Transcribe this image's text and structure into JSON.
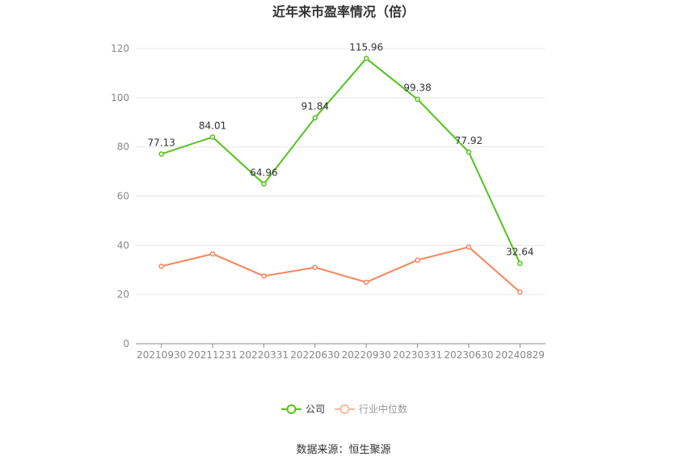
{
  "chart_data": {
    "type": "line",
    "title": "近年来市盈率情况（倍）",
    "categories": [
      "20210930",
      "20211231",
      "20220331",
      "20220630",
      "20220930",
      "20230331",
      "20230630",
      "20240829"
    ],
    "series": [
      {
        "name": "公司",
        "color": "#52c41a",
        "values": [
          77.13,
          84.01,
          64.96,
          91.84,
          115.96,
          99.38,
          77.92,
          32.64
        ],
        "labels": [
          "77.13",
          "84.01",
          "64.96",
          "91.84",
          "115.96",
          "99.38",
          "77.92",
          "32.64"
        ]
      },
      {
        "name": "行业中位数",
        "color": "#f5855b",
        "values": [
          31.5,
          36.5,
          27.5,
          31.0,
          25.0,
          34.0,
          39.3,
          21.0
        ]
      }
    ],
    "ylim": [
      0,
      120
    ],
    "yticks": [
      "0",
      "20",
      "40",
      "60",
      "80",
      "100",
      "120"
    ],
    "grid": true,
    "legend": "bottom"
  },
  "source": "数据来源：恒生聚源"
}
